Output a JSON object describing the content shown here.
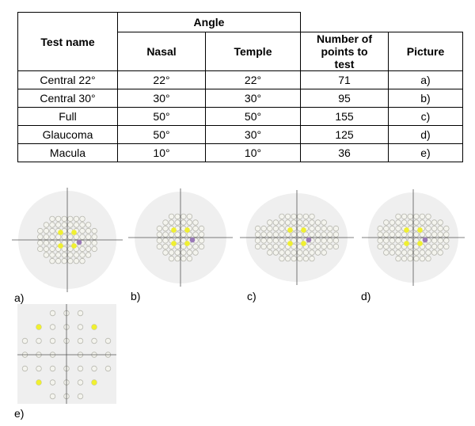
{
  "table": {
    "headers": {
      "test_name": "Test name",
      "angle": "Angle",
      "nasal": "Nasal",
      "temple": "Temple",
      "points": "Number of points to test",
      "picture": "Picture"
    },
    "rows": [
      [
        "Central 22°",
        "22°",
        "22°",
        "71",
        "a)"
      ],
      [
        "Central 30°",
        "30°",
        "30°",
        "95",
        "b)"
      ],
      [
        "Full",
        "50°",
        "50°",
        "155",
        "c)"
      ],
      [
        "Glaucoma",
        "50°",
        "30°",
        "125",
        "d)"
      ],
      [
        "Macula",
        "10°",
        "10°",
        "36",
        "e)"
      ]
    ]
  },
  "figures": [
    {
      "label": "a)"
    },
    {
      "label": "b)"
    },
    {
      "label": "c)"
    },
    {
      "label": "d)"
    },
    {
      "label": "e)"
    }
  ]
}
